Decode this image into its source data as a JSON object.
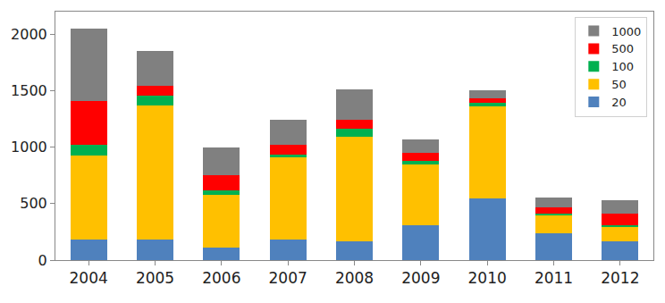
{
  "chart_data": {
    "type": "bar",
    "stacked": true,
    "categories": [
      "2004",
      "2005",
      "2006",
      "2007",
      "2008",
      "2009",
      "2010",
      "2011",
      "2012"
    ],
    "series": [
      {
        "name": "20",
        "color": "#4f81bd",
        "values": [
          180,
          180,
          110,
          185,
          165,
          310,
          545,
          240,
          170
        ]
      },
      {
        "name": "50",
        "color": "#ffc000",
        "values": [
          745,
          1190,
          465,
          725,
          930,
          540,
          820,
          160,
          120
        ]
      },
      {
        "name": "100",
        "color": "#00b050",
        "values": [
          95,
          90,
          40,
          25,
          65,
          30,
          25,
          15,
          20
        ]
      },
      {
        "name": "500",
        "color": "#ff0000",
        "values": [
          390,
          85,
          135,
          85,
          85,
          70,
          40,
          50,
          105
        ]
      },
      {
        "name": "1000",
        "color": "#808080",
        "values": [
          640,
          305,
          250,
          225,
          265,
          115,
          70,
          90,
          115
        ]
      }
    ],
    "ylim": [
      0,
      2200
    ],
    "yticks": [
      0,
      500,
      1000,
      1500,
      2000
    ],
    "grid": false,
    "legend": "upper right"
  }
}
